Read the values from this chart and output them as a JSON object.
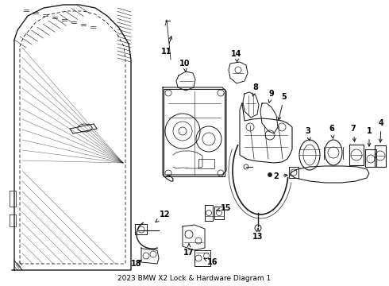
{
  "title": "2023 BMW X2 Lock & Hardware Diagram 1",
  "bg_color": "#ffffff",
  "line_color": "#1a1a1a",
  "label_color": "#000000",
  "fig_width": 4.9,
  "fig_height": 3.6,
  "dpi": 100,
  "label_fontsize": 7.0,
  "title_fontsize": 6.5,
  "label_arrow_lw": 0.7,
  "component_lw": 0.8,
  "door_lw": 1.0
}
